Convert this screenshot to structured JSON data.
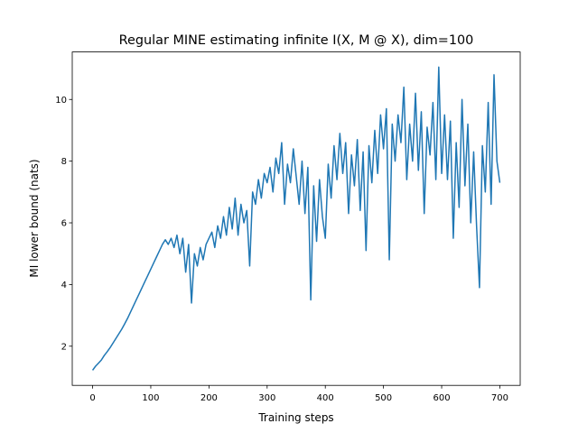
{
  "chart_data": {
    "type": "line",
    "title": "Regular MINE estimating infinite I(X, M @ X), dim=100",
    "xlabel": "Training steps",
    "ylabel": "MI lower bound (nats)",
    "color": "#1f77b4",
    "x": [
      0,
      5,
      10,
      15,
      20,
      25,
      30,
      35,
      40,
      45,
      50,
      55,
      60,
      65,
      70,
      75,
      80,
      85,
      90,
      95,
      100,
      105,
      110,
      115,
      120,
      125,
      130,
      135,
      140,
      145,
      150,
      155,
      160,
      165,
      170,
      175,
      180,
      185,
      190,
      195,
      200,
      205,
      210,
      215,
      220,
      225,
      230,
      235,
      240,
      245,
      250,
      255,
      260,
      265,
      270,
      275,
      280,
      285,
      290,
      295,
      300,
      305,
      310,
      315,
      320,
      325,
      330,
      335,
      340,
      345,
      350,
      355,
      360,
      365,
      370,
      375,
      380,
      385,
      390,
      395,
      400,
      405,
      410,
      415,
      420,
      425,
      430,
      435,
      440,
      445,
      450,
      455,
      460,
      465,
      470,
      475,
      480,
      485,
      490,
      495,
      500,
      505,
      510,
      515,
      520,
      525,
      530,
      535,
      540,
      545,
      550,
      555,
      560,
      565,
      570,
      575,
      580,
      585,
      590,
      595,
      600,
      605,
      610,
      615,
      620,
      625,
      630,
      635,
      640,
      645,
      650,
      655,
      660,
      665,
      670,
      675,
      680,
      685,
      690,
      695,
      700
    ],
    "values": [
      1.22,
      1.35,
      1.45,
      1.55,
      1.7,
      1.82,
      1.95,
      2.1,
      2.25,
      2.4,
      2.55,
      2.72,
      2.9,
      3.1,
      3.3,
      3.5,
      3.7,
      3.9,
      4.1,
      4.3,
      4.5,
      4.7,
      4.9,
      5.1,
      5.3,
      5.45,
      5.3,
      5.5,
      5.2,
      5.6,
      5.0,
      5.5,
      4.4,
      5.3,
      3.4,
      5.0,
      4.6,
      5.2,
      4.8,
      5.3,
      5.5,
      5.7,
      5.2,
      5.9,
      5.5,
      6.2,
      5.6,
      6.5,
      5.8,
      6.8,
      5.6,
      6.6,
      6.0,
      6.4,
      4.6,
      7.0,
      6.6,
      7.4,
      6.8,
      7.6,
      7.3,
      7.8,
      7.0,
      8.1,
      7.6,
      8.6,
      6.6,
      7.9,
      7.3,
      8.4,
      7.5,
      6.6,
      8.0,
      6.3,
      7.8,
      3.5,
      7.2,
      5.4,
      7.4,
      6.2,
      5.5,
      7.9,
      6.8,
      8.5,
      7.4,
      8.9,
      7.6,
      8.6,
      6.3,
      8.2,
      7.2,
      8.7,
      6.4,
      8.3,
      5.1,
      8.5,
      7.3,
      9.0,
      7.6,
      9.5,
      8.4,
      9.7,
      4.8,
      9.2,
      8.0,
      9.5,
      8.6,
      10.4,
      7.4,
      9.2,
      8.0,
      10.2,
      7.7,
      9.6,
      6.3,
      9.1,
      8.2,
      9.9,
      7.4,
      11.05,
      7.6,
      9.5,
      7.4,
      9.3,
      5.5,
      8.6,
      6.5,
      10.0,
      7.2,
      9.2,
      6.0,
      8.3,
      5.9,
      3.9,
      8.5,
      7.0,
      9.9,
      6.6,
      10.8,
      8.0,
      7.3
    ],
    "xlim": [
      -35,
      735
    ],
    "ylim": [
      0.73,
      11.54
    ],
    "xticks": [
      0,
      100,
      200,
      300,
      400,
      500,
      600,
      700
    ],
    "yticks": [
      2,
      4,
      6,
      8,
      10
    ]
  }
}
